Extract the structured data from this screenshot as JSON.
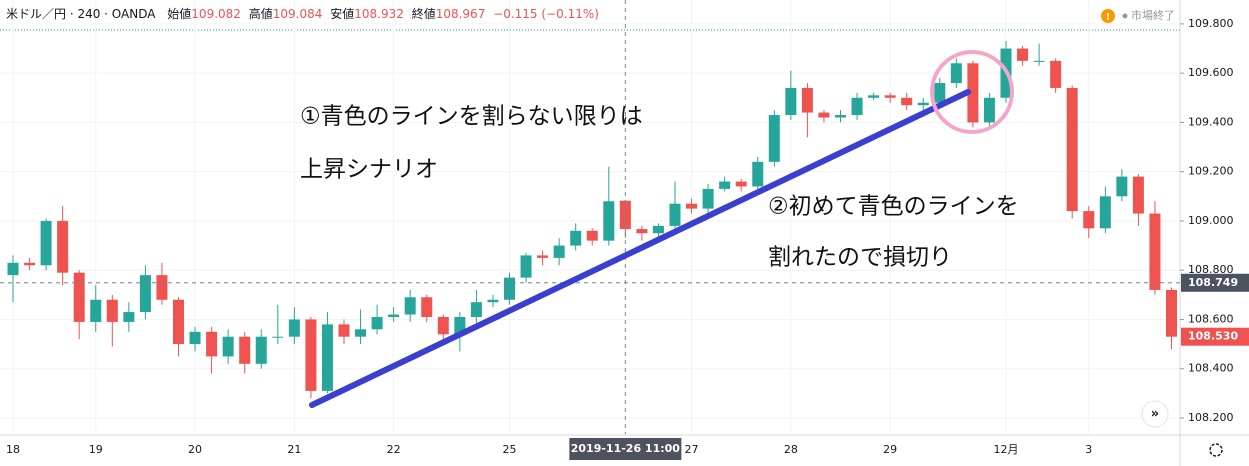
{
  "chart_data": {
    "type": "candlestick",
    "title": "米ドル／円 · 240 · OANDA",
    "ohlc_labels": [
      "始値",
      "高値",
      "安値",
      "終値"
    ],
    "change": "−0.115 (−0.11%)",
    "status": "市場終了",
    "annotations": [
      "①青色のラインを割らない限りは",
      "上昇シナリオ",
      "②初めて青色のラインを",
      "割れたので損切り"
    ],
    "crosshair": {
      "x_label": "2019-11-26   11:00",
      "price": 108.749
    },
    "last_price": {
      "value": 108.53,
      "label": "108.530"
    },
    "up_color": "#26a69a",
    "down_color": "#ef5350",
    "grid": true,
    "categories": [
      "18",
      null,
      null,
      null,
      null,
      "19",
      null,
      null,
      null,
      null,
      null,
      "20",
      null,
      null,
      null,
      null,
      null,
      "21",
      null,
      null,
      null,
      null,
      null,
      "22",
      null,
      null,
      null,
      null,
      null,
      null,
      "25",
      null,
      null,
      null,
      null,
      null,
      null,
      null,
      null,
      null,
      null,
      "27",
      null,
      null,
      null,
      null,
      null,
      "28",
      null,
      null,
      null,
      null,
      null,
      "29",
      null,
      null,
      null,
      null,
      null,
      null,
      "12月",
      null,
      null,
      null,
      null,
      "3",
      null,
      null,
      null,
      null,
      null
    ],
    "open": [
      108.78,
      108.83,
      108.82,
      109.0,
      108.79,
      108.59,
      108.68,
      108.59,
      108.63,
      108.78,
      108.68,
      108.5,
      108.55,
      108.45,
      108.53,
      108.42,
      108.53,
      108.53,
      108.6,
      108.31,
      108.58,
      108.53,
      108.56,
      108.61,
      108.62,
      108.69,
      108.61,
      108.54,
      108.61,
      108.67,
      108.68,
      108.77,
      108.86,
      108.85,
      108.9,
      108.96,
      108.92,
      109.082,
      108.967,
      108.95,
      108.98,
      109.07,
      109.05,
      109.13,
      109.16,
      109.14,
      109.24,
      109.43,
      109.54,
      109.44,
      109.42,
      109.43,
      109.5,
      109.51,
      109.5,
      109.47,
      109.48,
      109.56,
      109.64,
      109.4,
      109.5,
      109.7,
      109.65,
      109.65,
      109.54,
      109.04,
      108.97,
      109.1,
      109.18,
      109.03,
      108.72
    ],
    "high": [
      108.86,
      108.85,
      109.01,
      109.06,
      108.8,
      108.74,
      108.7,
      108.67,
      108.82,
      108.83,
      108.69,
      108.57,
      108.57,
      108.56,
      108.55,
      108.56,
      108.66,
      108.65,
      108.61,
      108.63,
      108.6,
      108.64,
      108.66,
      108.65,
      108.72,
      108.7,
      108.62,
      108.63,
      108.72,
      108.7,
      108.79,
      108.87,
      108.88,
      108.93,
      108.99,
      108.97,
      109.22,
      109.084,
      108.98,
      108.99,
      109.16,
      109.09,
      109.15,
      109.18,
      109.17,
      109.26,
      109.45,
      109.61,
      109.56,
      109.45,
      109.45,
      109.52,
      109.52,
      109.52,
      109.52,
      109.5,
      109.58,
      109.66,
      109.65,
      109.52,
      109.73,
      109.71,
      109.72,
      109.66,
      109.55,
      109.06,
      109.14,
      109.21,
      109.19,
      109.08,
      108.73
    ],
    "low": [
      108.67,
      108.8,
      108.8,
      108.74,
      108.52,
      108.55,
      108.49,
      108.55,
      108.6,
      108.66,
      108.45,
      108.47,
      108.38,
      108.42,
      108.38,
      108.4,
      108.5,
      108.5,
      108.28,
      108.3,
      108.5,
      108.5,
      108.54,
      108.59,
      108.59,
      108.59,
      108.5,
      108.47,
      108.58,
      108.65,
      108.66,
      108.75,
      108.82,
      108.82,
      108.88,
      108.9,
      108.9,
      108.932,
      108.92,
      108.93,
      108.96,
      109.03,
      109.03,
      109.12,
      109.12,
      109.13,
      109.22,
      109.41,
      109.34,
      109.4,
      109.4,
      109.41,
      109.49,
      109.48,
      109.45,
      109.45,
      109.46,
      109.54,
      109.38,
      109.38,
      109.48,
      109.63,
      109.63,
      109.52,
      109.01,
      108.93,
      108.95,
      109.08,
      108.98,
      108.7,
      108.48
    ],
    "close": [
      108.83,
      108.82,
      109.0,
      108.79,
      108.59,
      108.68,
      108.59,
      108.63,
      108.78,
      108.68,
      108.5,
      108.55,
      108.45,
      108.53,
      108.42,
      108.53,
      108.53,
      108.6,
      108.31,
      108.58,
      108.53,
      108.56,
      108.61,
      108.62,
      108.69,
      108.61,
      108.54,
      108.61,
      108.67,
      108.68,
      108.77,
      108.86,
      108.85,
      108.9,
      108.96,
      108.92,
      109.08,
      108.967,
      108.95,
      108.98,
      109.07,
      109.05,
      109.13,
      109.16,
      109.14,
      109.24,
      109.43,
      109.54,
      109.44,
      109.42,
      109.43,
      109.5,
      109.51,
      109.5,
      109.47,
      109.48,
      109.56,
      109.64,
      109.4,
      109.5,
      109.7,
      109.65,
      109.65,
      109.54,
      109.04,
      108.97,
      109.1,
      109.18,
      109.03,
      108.72,
      108.53
    ],
    "ylim": [
      108.135,
      109.897
    ],
    "yticks": [
      {
        "value": 108.2,
        "label": "108.200"
      },
      {
        "value": 108.4,
        "label": "108.400"
      },
      {
        "value": 108.6,
        "label": "108.600"
      },
      {
        "value": 108.8,
        "label": "108.800"
      },
      {
        "value": 109.0,
        "label": "109.000"
      },
      {
        "value": 109.2,
        "label": "109.200"
      },
      {
        "value": 109.4,
        "label": "109.400"
      },
      {
        "value": 109.6,
        "label": "109.600"
      },
      {
        "value": 109.8,
        "label": "109.800"
      }
    ]
  }
}
